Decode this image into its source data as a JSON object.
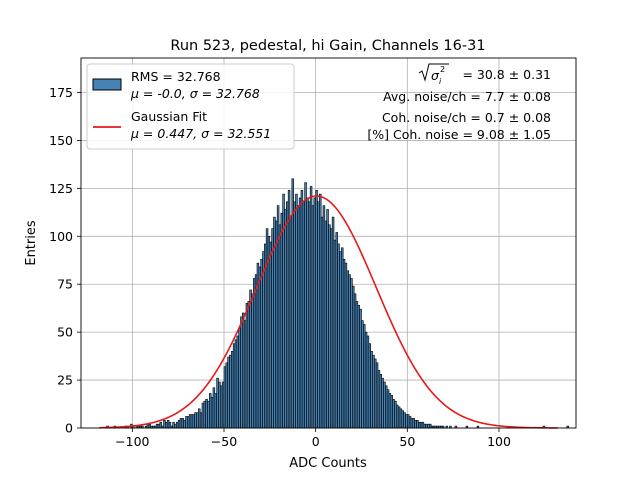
{
  "chart_data": {
    "type": "bar",
    "title": "Run 523, pedestal, hi Gain, Channels 16-31",
    "xlabel": "ADC Counts",
    "ylabel": "Entries",
    "xlim": [
      -128,
      142
    ],
    "ylim": [
      0,
      193
    ],
    "grid": true,
    "xticks": [
      -100,
      -50,
      0,
      50,
      100
    ],
    "xtick_labels": [
      "−100",
      "−50",
      "0",
      "50",
      "100"
    ],
    "yticks": [
      0,
      25,
      50,
      75,
      100,
      125,
      150,
      175
    ],
    "ytick_labels": [
      "0",
      "25",
      "50",
      "75",
      "100",
      "125",
      "150",
      "175"
    ],
    "legend_position": "top-left",
    "histogram": {
      "name": "RMS = 32.768",
      "label_line2": "μ = -0.0, σ = 32.768",
      "color": "#4682b4",
      "edge_color": "#000000",
      "bin_edges_range": [
        -116,
        130
      ],
      "bin_width": 1,
      "values": [
        0,
        0,
        1,
        0,
        0,
        0,
        1,
        0,
        0,
        0,
        0,
        0,
        1,
        1,
        0,
        2,
        1,
        0,
        1,
        1,
        1,
        1,
        0,
        1,
        2,
        2,
        1,
        1,
        1,
        2,
        2,
        3,
        1,
        4,
        3,
        4,
        3,
        1,
        3,
        2,
        3,
        4,
        5,
        5,
        4,
        6,
        6,
        7,
        7,
        7,
        8,
        8,
        10,
        8,
        13,
        14,
        15,
        14,
        18,
        16,
        21,
        18,
        26,
        24,
        22,
        24,
        32,
        34,
        37,
        38,
        40,
        44,
        46,
        48,
        52,
        58,
        60,
        56,
        65,
        66,
        72,
        70,
        78,
        80,
        86,
        84,
        88,
        92,
        96,
        104,
        100,
        97,
        104,
        110,
        108,
        116,
        106,
        112,
        122,
        114,
        118,
        124,
        110,
        130,
        118,
        122,
        116,
        120,
        124,
        118,
        128,
        120,
        118,
        126,
        116,
        120,
        124,
        118,
        122,
        110,
        116,
        108,
        114,
        106,
        104,
        110,
        98,
        102,
        96,
        92,
        94,
        88,
        86,
        82,
        80,
        78,
        74,
        70,
        66,
        64,
        62,
        56,
        54,
        50,
        48,
        44,
        40,
        38,
        36,
        34,
        30,
        28,
        26,
        24,
        22,
        20,
        18,
        17,
        15,
        14,
        12,
        11,
        10,
        9,
        8,
        7,
        7,
        6,
        5,
        5,
        4,
        4,
        3,
        3,
        3,
        2,
        2,
        2,
        2,
        1,
        1,
        1,
        1,
        1,
        1,
        1,
        0,
        1,
        0,
        1,
        0,
        0,
        1,
        0,
        0,
        0,
        0,
        0,
        1,
        0,
        0,
        0,
        0,
        0,
        1,
        0,
        0,
        0,
        0,
        0,
        0,
        0,
        0,
        0,
        0,
        0,
        0,
        0,
        0,
        0,
        0,
        0,
        0,
        0,
        0,
        0,
        0,
        0,
        0,
        0,
        0,
        0,
        0,
        0,
        0,
        0,
        0,
        0,
        0,
        0,
        1,
        0,
        0,
        0,
        0,
        0,
        0,
        0,
        0,
        0,
        0,
        0,
        0,
        1
      ]
    },
    "fit": {
      "name": "Gaussian Fit",
      "label_line2": "μ = 0.447, σ = 32.551",
      "color": "#e31a1c",
      "mu": 0.447,
      "sigma": 32.551,
      "amplitude": 121
    },
    "annotations": [
      "= 30.8 ± 0.31",
      "Avg. noise/ch = 7.7 ± 0.08",
      "Coh. noise/ch = 0.7 ± 0.08",
      "[%] Coh. noise = 9.08 ± 1.05"
    ]
  }
}
